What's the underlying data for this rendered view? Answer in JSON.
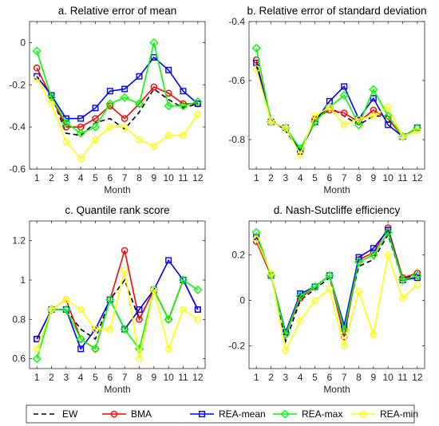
{
  "chart_data": [
    {
      "type": "line",
      "title": "a. Relative error of mean",
      "xlabel": "Month",
      "ylabel": "",
      "x": [
        1,
        2,
        3,
        4,
        5,
        6,
        7,
        8,
        9,
        10,
        11,
        12
      ],
      "x_ticks": [
        "1",
        "2",
        "3",
        "4",
        "5",
        "6",
        "7",
        "8",
        "9",
        "10",
        "11",
        "12"
      ],
      "ylim": [
        -0.6,
        0.1
      ],
      "y_ticks": [
        -0.6,
        -0.4,
        -0.2,
        0
      ],
      "y_tick_labels": [
        "-0.6",
        "-0.4",
        "-0.2",
        "0"
      ],
      "series": [
        {
          "name": "EW",
          "values": [
            -0.16,
            -0.25,
            -0.43,
            -0.44,
            -0.38,
            -0.36,
            -0.41,
            -0.33,
            -0.22,
            -0.27,
            -0.31,
            -0.29
          ]
        },
        {
          "name": "BMA",
          "values": [
            -0.12,
            -0.26,
            -0.4,
            -0.4,
            -0.36,
            -0.3,
            -0.36,
            -0.29,
            -0.21,
            -0.24,
            -0.29,
            -0.29
          ]
        },
        {
          "name": "REA-mean",
          "values": [
            -0.16,
            -0.25,
            -0.36,
            -0.36,
            -0.31,
            -0.23,
            -0.22,
            -0.16,
            -0.07,
            -0.13,
            -0.23,
            -0.29
          ]
        },
        {
          "name": "REA-max",
          "values": [
            -0.04,
            -0.26,
            -0.38,
            -0.43,
            -0.4,
            -0.29,
            -0.26,
            -0.29,
            0.0,
            -0.3,
            -0.3,
            -0.28
          ]
        },
        {
          "name": "REA-min",
          "values": [
            -0.17,
            -0.29,
            -0.47,
            -0.55,
            -0.46,
            -0.4,
            -0.4,
            -0.46,
            -0.49,
            -0.44,
            -0.44,
            -0.34
          ]
        }
      ]
    },
    {
      "type": "line",
      "title": "b. Relative error of standard deviation",
      "xlabel": "Month",
      "ylabel": "",
      "x": [
        1,
        2,
        3,
        4,
        5,
        6,
        7,
        8,
        9,
        10,
        11,
        12
      ],
      "x_ticks": [
        "1",
        "2",
        "3",
        "4",
        "5",
        "6",
        "7",
        "8",
        "9",
        "10",
        "11",
        "12"
      ],
      "ylim": [
        -0.9,
        -0.4
      ],
      "y_ticks": [
        -0.8,
        -0.6,
        -0.4
      ],
      "y_tick_labels": [
        "-0.8",
        "-0.6",
        "-0.4"
      ],
      "series": [
        {
          "name": "EW",
          "values": [
            -0.55,
            -0.73,
            -0.77,
            -0.84,
            -0.73,
            -0.69,
            -0.72,
            -0.75,
            -0.72,
            -0.72,
            -0.79,
            -0.76
          ]
        },
        {
          "name": "BMA",
          "values": [
            -0.53,
            -0.74,
            -0.76,
            -0.84,
            -0.73,
            -0.7,
            -0.71,
            -0.74,
            -0.7,
            -0.73,
            -0.79,
            -0.76
          ]
        },
        {
          "name": "REA-mean",
          "values": [
            -0.54,
            -0.74,
            -0.76,
            -0.84,
            -0.74,
            -0.67,
            -0.62,
            -0.73,
            -0.66,
            -0.75,
            -0.79,
            -0.76
          ]
        },
        {
          "name": "REA-max",
          "values": [
            -0.49,
            -0.74,
            -0.76,
            -0.83,
            -0.74,
            -0.69,
            -0.65,
            -0.75,
            -0.63,
            -0.72,
            -0.79,
            -0.76
          ]
        },
        {
          "name": "REA-min",
          "values": [
            -0.56,
            -0.74,
            -0.76,
            -0.85,
            -0.72,
            -0.69,
            -0.75,
            -0.73,
            -0.72,
            -0.69,
            -0.79,
            -0.77
          ]
        }
      ]
    },
    {
      "type": "line",
      "title": "c. Quantile rank score",
      "xlabel": "Month",
      "ylabel": "",
      "x": [
        1,
        2,
        3,
        4,
        5,
        6,
        7,
        8,
        9,
        10,
        11,
        12
      ],
      "x_ticks": [
        "1",
        "2",
        "3",
        "4",
        "5",
        "6",
        "7",
        "8",
        "9",
        "10",
        "11",
        "12"
      ],
      "ylim": [
        0.55,
        1.3
      ],
      "y_ticks": [
        0.6,
        0.8,
        1,
        1.2
      ],
      "y_tick_labels": [
        "0.6",
        "0.8",
        "1",
        "1.2"
      ],
      "series": [
        {
          "name": "EW",
          "values": [
            0.7,
            0.85,
            0.85,
            0.75,
            0.7,
            0.9,
            1.0,
            0.8,
            0.95,
            0.8,
            1.0,
            0.85
          ]
        },
        {
          "name": "BMA",
          "values": [
            0.7,
            0.85,
            0.9,
            0.7,
            0.65,
            0.9,
            1.15,
            0.8,
            0.95,
            0.8,
            1.0,
            0.85
          ]
        },
        {
          "name": "REA-mean",
          "values": [
            0.7,
            0.85,
            0.85,
            0.65,
            0.75,
            0.9,
            0.75,
            0.85,
            0.95,
            1.1,
            1.0,
            0.85
          ]
        },
        {
          "name": "REA-max",
          "values": [
            0.6,
            0.85,
            0.85,
            0.7,
            0.65,
            0.9,
            0.75,
            0.65,
            0.95,
            0.8,
            1.0,
            0.95
          ]
        },
        {
          "name": "REA-min",
          "values": [
            0.65,
            0.85,
            0.9,
            0.85,
            0.75,
            0.75,
            1.05,
            0.6,
            0.95,
            0.65,
            0.85,
            0.8
          ]
        }
      ]
    },
    {
      "type": "line",
      "title": "d. Nash-Sutcliffe efficiency",
      "xlabel": "Month",
      "ylabel": "",
      "x": [
        1,
        2,
        3,
        4,
        5,
        6,
        7,
        8,
        9,
        10,
        11,
        12
      ],
      "x_ticks": [
        "1",
        "2",
        "3",
        "4",
        "5",
        "6",
        "7",
        "8",
        "9",
        "10",
        "11",
        "12"
      ],
      "ylim": [
        -0.3,
        0.35
      ],
      "y_ticks": [
        -0.2,
        0,
        0.2
      ],
      "y_tick_labels": [
        "-0.2",
        "0",
        "0.2"
      ],
      "series": [
        {
          "name": "EW",
          "values": [
            0.27,
            0.11,
            -0.18,
            0.0,
            0.05,
            0.1,
            -0.12,
            0.15,
            0.18,
            0.29,
            0.09,
            0.12
          ]
        },
        {
          "name": "BMA",
          "values": [
            0.26,
            0.11,
            -0.15,
            0.01,
            0.06,
            0.11,
            -0.16,
            0.18,
            0.21,
            0.32,
            0.1,
            0.12
          ]
        },
        {
          "name": "REA-mean",
          "values": [
            0.28,
            0.11,
            -0.14,
            0.03,
            0.06,
            0.11,
            -0.11,
            0.19,
            0.23,
            0.31,
            0.09,
            0.1
          ]
        },
        {
          "name": "REA-max",
          "values": [
            0.3,
            0.11,
            -0.15,
            0.02,
            0.06,
            0.11,
            -0.13,
            0.17,
            0.2,
            0.3,
            0.09,
            0.11
          ]
        },
        {
          "name": "REA-min",
          "values": [
            0.27,
            0.12,
            -0.22,
            -0.09,
            0.0,
            0.05,
            -0.2,
            0.04,
            -0.15,
            0.2,
            0.01,
            0.07
          ]
        }
      ]
    }
  ],
  "legend": {
    "placement": "bottom",
    "items": [
      {
        "name": "EW",
        "color": "#000000",
        "style": "dashed",
        "marker": "none"
      },
      {
        "name": "BMA",
        "color": "#ff0000",
        "style": "solid",
        "marker": "circle"
      },
      {
        "name": "REA-mean",
        "color": "#0000ff",
        "style": "solid",
        "marker": "square"
      },
      {
        "name": "REA-max",
        "color": "#00ff00",
        "style": "solid",
        "marker": "diamond"
      },
      {
        "name": "REA-min",
        "color": "#ffff00",
        "style": "solid",
        "marker": "circle"
      }
    ]
  }
}
